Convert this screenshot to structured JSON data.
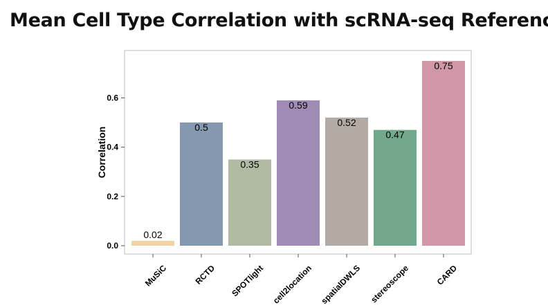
{
  "title": "Mean Cell Type Correlation with scRNA-seq Reference",
  "chart_data": {
    "type": "bar",
    "ylabel": "Correlation",
    "xlabel": "",
    "ylim": [
      0,
      0.77
    ],
    "yticks": [
      0.0,
      0.2,
      0.4,
      0.6
    ],
    "ytick_labels": [
      "0.0",
      "0.2",
      "0.4",
      "0.6"
    ],
    "categories": [
      "MuSiC",
      "RCTD",
      "SPOTlight",
      "cell2location",
      "spatialDWLS",
      "stereoscope",
      "CARD"
    ],
    "values": [
      0.02,
      0.5,
      0.35,
      0.59,
      0.52,
      0.47,
      0.75
    ],
    "labels": [
      "0.02",
      "0.5",
      "0.35",
      "0.59",
      "0.52",
      "0.47",
      "0.75"
    ],
    "colors": [
      "#efd2a6",
      "#8498b0",
      "#b1bba4",
      "#a08ab6",
      "#b3aaa3",
      "#72a88b",
      "#d098a7"
    ],
    "grid": false,
    "legend": "none"
  }
}
